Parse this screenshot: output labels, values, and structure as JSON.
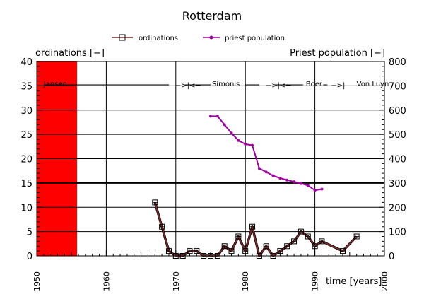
{
  "chart_data": {
    "type": "line",
    "title": "Rotterdam",
    "ylabel_left": "ordinations [−]",
    "ylabel_right": "Priest population [−]",
    "xlabel": "time [years]",
    "xlim": [
      1950,
      2000
    ],
    "ylim_left": [
      0,
      40
    ],
    "ylim_right": [
      0,
      800
    ],
    "x_ticks": [
      "1950",
      "1960",
      "1970",
      "1980",
      "1990",
      "2000"
    ],
    "y_ticks_left": [
      "0",
      "5",
      "10",
      "15",
      "20",
      "25",
      "30",
      "35",
      "40"
    ],
    "y_ticks_right": [
      "0",
      "100",
      "200",
      "300",
      "400",
      "500",
      "600",
      "700",
      "800"
    ],
    "grid": true,
    "legend_placement": "top",
    "highlight_band": {
      "x_from": 1950,
      "x_to": 1955.8,
      "color": "#ff0000"
    },
    "reference_line": {
      "y": 15,
      "axis": "left"
    },
    "annotations": [
      {
        "text": "Jansen",
        "x": 1951,
        "y": 35.5
      },
      {
        "text": "−>|<−",
        "x": 1969.9,
        "y": 35.2
      },
      {
        "text": "Simonis",
        "x": 1975.2,
        "y": 35.5
      },
      {
        "text": "−>|<−",
        "x": 1982.9,
        "y": 35.2
      },
      {
        "text": "Boer",
        "x": 1988.7,
        "y": 35.5
      },
      {
        "text": "−>|",
        "x": 1992.3,
        "y": 35.2
      },
      {
        "text": "Von Luyn",
        "x": 1996.0,
        "y": 35.5
      }
    ],
    "annotation_lines": [
      {
        "x1": 1951,
        "x2": 1969,
        "y": 35.2
      },
      {
        "x1": 1971.3,
        "x2": 1975,
        "y": 35.2
      },
      {
        "x1": 1980,
        "x2": 1982,
        "y": 35.2
      },
      {
        "x1": 1984.2,
        "x2": 1988.3,
        "y": 35.2
      },
      {
        "x1": 1991.2,
        "x2": 1991.8,
        "y": 35.2
      }
    ],
    "series": [
      {
        "name": "ordinations",
        "axis": "left",
        "color": "#7a2a2a",
        "marker": "square",
        "x": [
          1967,
          1968,
          1969,
          1970,
          1971,
          1972,
          1973,
          1974,
          1975,
          1976,
          1977,
          1978,
          1979,
          1980,
          1981,
          1982,
          1983,
          1984,
          1985,
          1986,
          1987,
          1988,
          1989,
          1990,
          1991,
          1994,
          1996
        ],
        "values": [
          11,
          6,
          1,
          0,
          0,
          1,
          1,
          0,
          0,
          0,
          2,
          1,
          4,
          1,
          6,
          0,
          2,
          0,
          1,
          2,
          3,
          5,
          4,
          2,
          3,
          1,
          4
        ]
      },
      {
        "name": "priest population",
        "axis": "right",
        "color": "#a000a0",
        "marker": "dot",
        "x": [
          1975,
          1976,
          1977,
          1978,
          1979,
          1980,
          1981,
          1982,
          1983,
          1984,
          1985,
          1986,
          1987,
          1988,
          1989,
          1990,
          1991
        ],
        "values": [
          575,
          575,
          540,
          505,
          475,
          460,
          455,
          360,
          345,
          330,
          320,
          312,
          305,
          298,
          290,
          270,
          275
        ]
      }
    ]
  }
}
